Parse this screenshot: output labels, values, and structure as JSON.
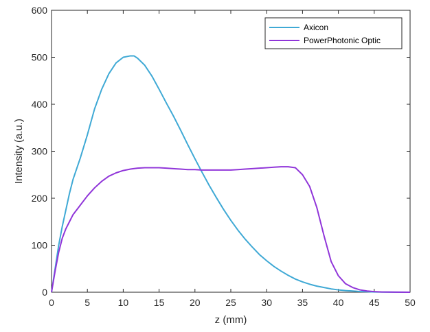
{
  "chart_data": {
    "type": "line",
    "xlabel": "z (mm)",
    "ylabel": "Intensity (a.u.)",
    "xlim": [
      0,
      50
    ],
    "ylim": [
      0,
      600
    ],
    "xticks": [
      0,
      5,
      10,
      15,
      20,
      25,
      30,
      35,
      40,
      45,
      50
    ],
    "yticks": [
      0,
      100,
      200,
      300,
      400,
      500,
      600
    ],
    "grid": false,
    "legend_position": "top-right",
    "series": [
      {
        "name": "Axicon",
        "color": "#3fa9d5",
        "x": [
          0,
          0.5,
          1,
          1.5,
          2,
          2.5,
          3,
          4,
          5,
          6,
          7,
          8,
          9,
          10,
          11,
          11.5,
          12,
          13,
          14,
          15,
          16,
          17,
          18,
          19,
          20,
          21,
          22,
          23,
          24,
          25,
          26,
          27,
          28,
          29,
          30,
          31,
          32,
          33,
          34,
          35,
          36,
          37,
          38,
          39,
          40,
          41,
          42,
          43,
          44,
          45,
          46,
          48,
          50
        ],
        "values": [
          0,
          50,
          100,
          140,
          175,
          210,
          240,
          285,
          335,
          390,
          432,
          465,
          488,
          500,
          503,
          503,
          498,
          483,
          460,
          432,
          403,
          375,
          345,
          314,
          284,
          255,
          227,
          201,
          176,
          153,
          132,
          113,
          96,
          80,
          67,
          55,
          45,
          36,
          28,
          22,
          17,
          13,
          10,
          7,
          5,
          3.5,
          2.5,
          1.5,
          1,
          0.5,
          0.3,
          0.1,
          0
        ]
      },
      {
        "name": "PowerPhotonic Optic",
        "color": "#9035d9",
        "x": [
          0,
          0.5,
          1,
          1.5,
          2,
          2.5,
          3,
          4,
          5,
          6,
          7,
          8,
          9,
          10,
          11,
          12,
          13,
          14,
          15,
          16,
          17,
          18,
          19,
          20,
          21,
          22,
          23,
          24,
          25,
          26,
          27,
          28,
          29,
          30,
          31,
          32,
          33,
          34,
          35,
          36,
          37,
          38,
          39,
          40,
          41,
          42,
          43,
          44,
          45,
          46,
          48,
          50
        ],
        "values": [
          0,
          45,
          85,
          115,
          135,
          150,
          165,
          185,
          205,
          222,
          236,
          247,
          254,
          259,
          262,
          264,
          265,
          265,
          265,
          264,
          263,
          262,
          261,
          261,
          260,
          260,
          260,
          260,
          260,
          261,
          262,
          263,
          264,
          265,
          266,
          267,
          267,
          265,
          250,
          225,
          180,
          120,
          65,
          35,
          18,
          10,
          5,
          2.5,
          1.2,
          0.5,
          0.1,
          0
        ]
      }
    ]
  }
}
